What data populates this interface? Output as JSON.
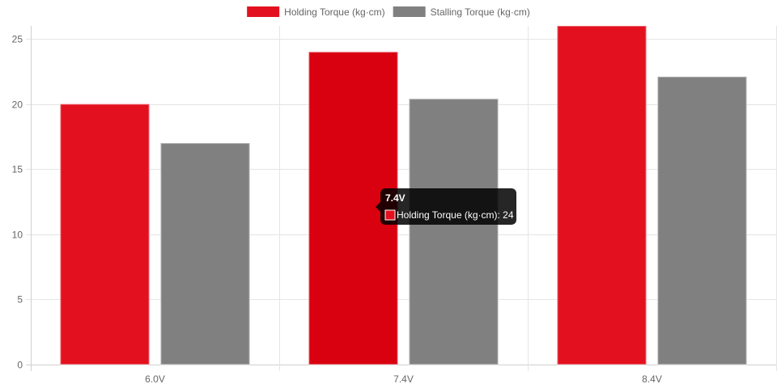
{
  "chart_data": {
    "type": "bar",
    "categories": [
      "6.0V",
      "7.4V",
      "8.4V"
    ],
    "series": [
      {
        "name": "Holding Torque (kg·cm)",
        "values": [
          20,
          24,
          26
        ],
        "color": "#e3111f",
        "hover_color": "#d9000f"
      },
      {
        "name": "Stalling Torque (kg·cm)",
        "values": [
          17,
          20.4,
          22.1
        ],
        "color": "#808080"
      }
    ],
    "ylim": [
      0,
      26
    ],
    "yticks": [
      0,
      5,
      10,
      15,
      20,
      25
    ],
    "grid": true,
    "legend_position": "top",
    "tooltip": {
      "title": "7.4V",
      "label": "Holding Torque (kg·cm): 24",
      "category_index": 1,
      "series_index": 0
    }
  }
}
